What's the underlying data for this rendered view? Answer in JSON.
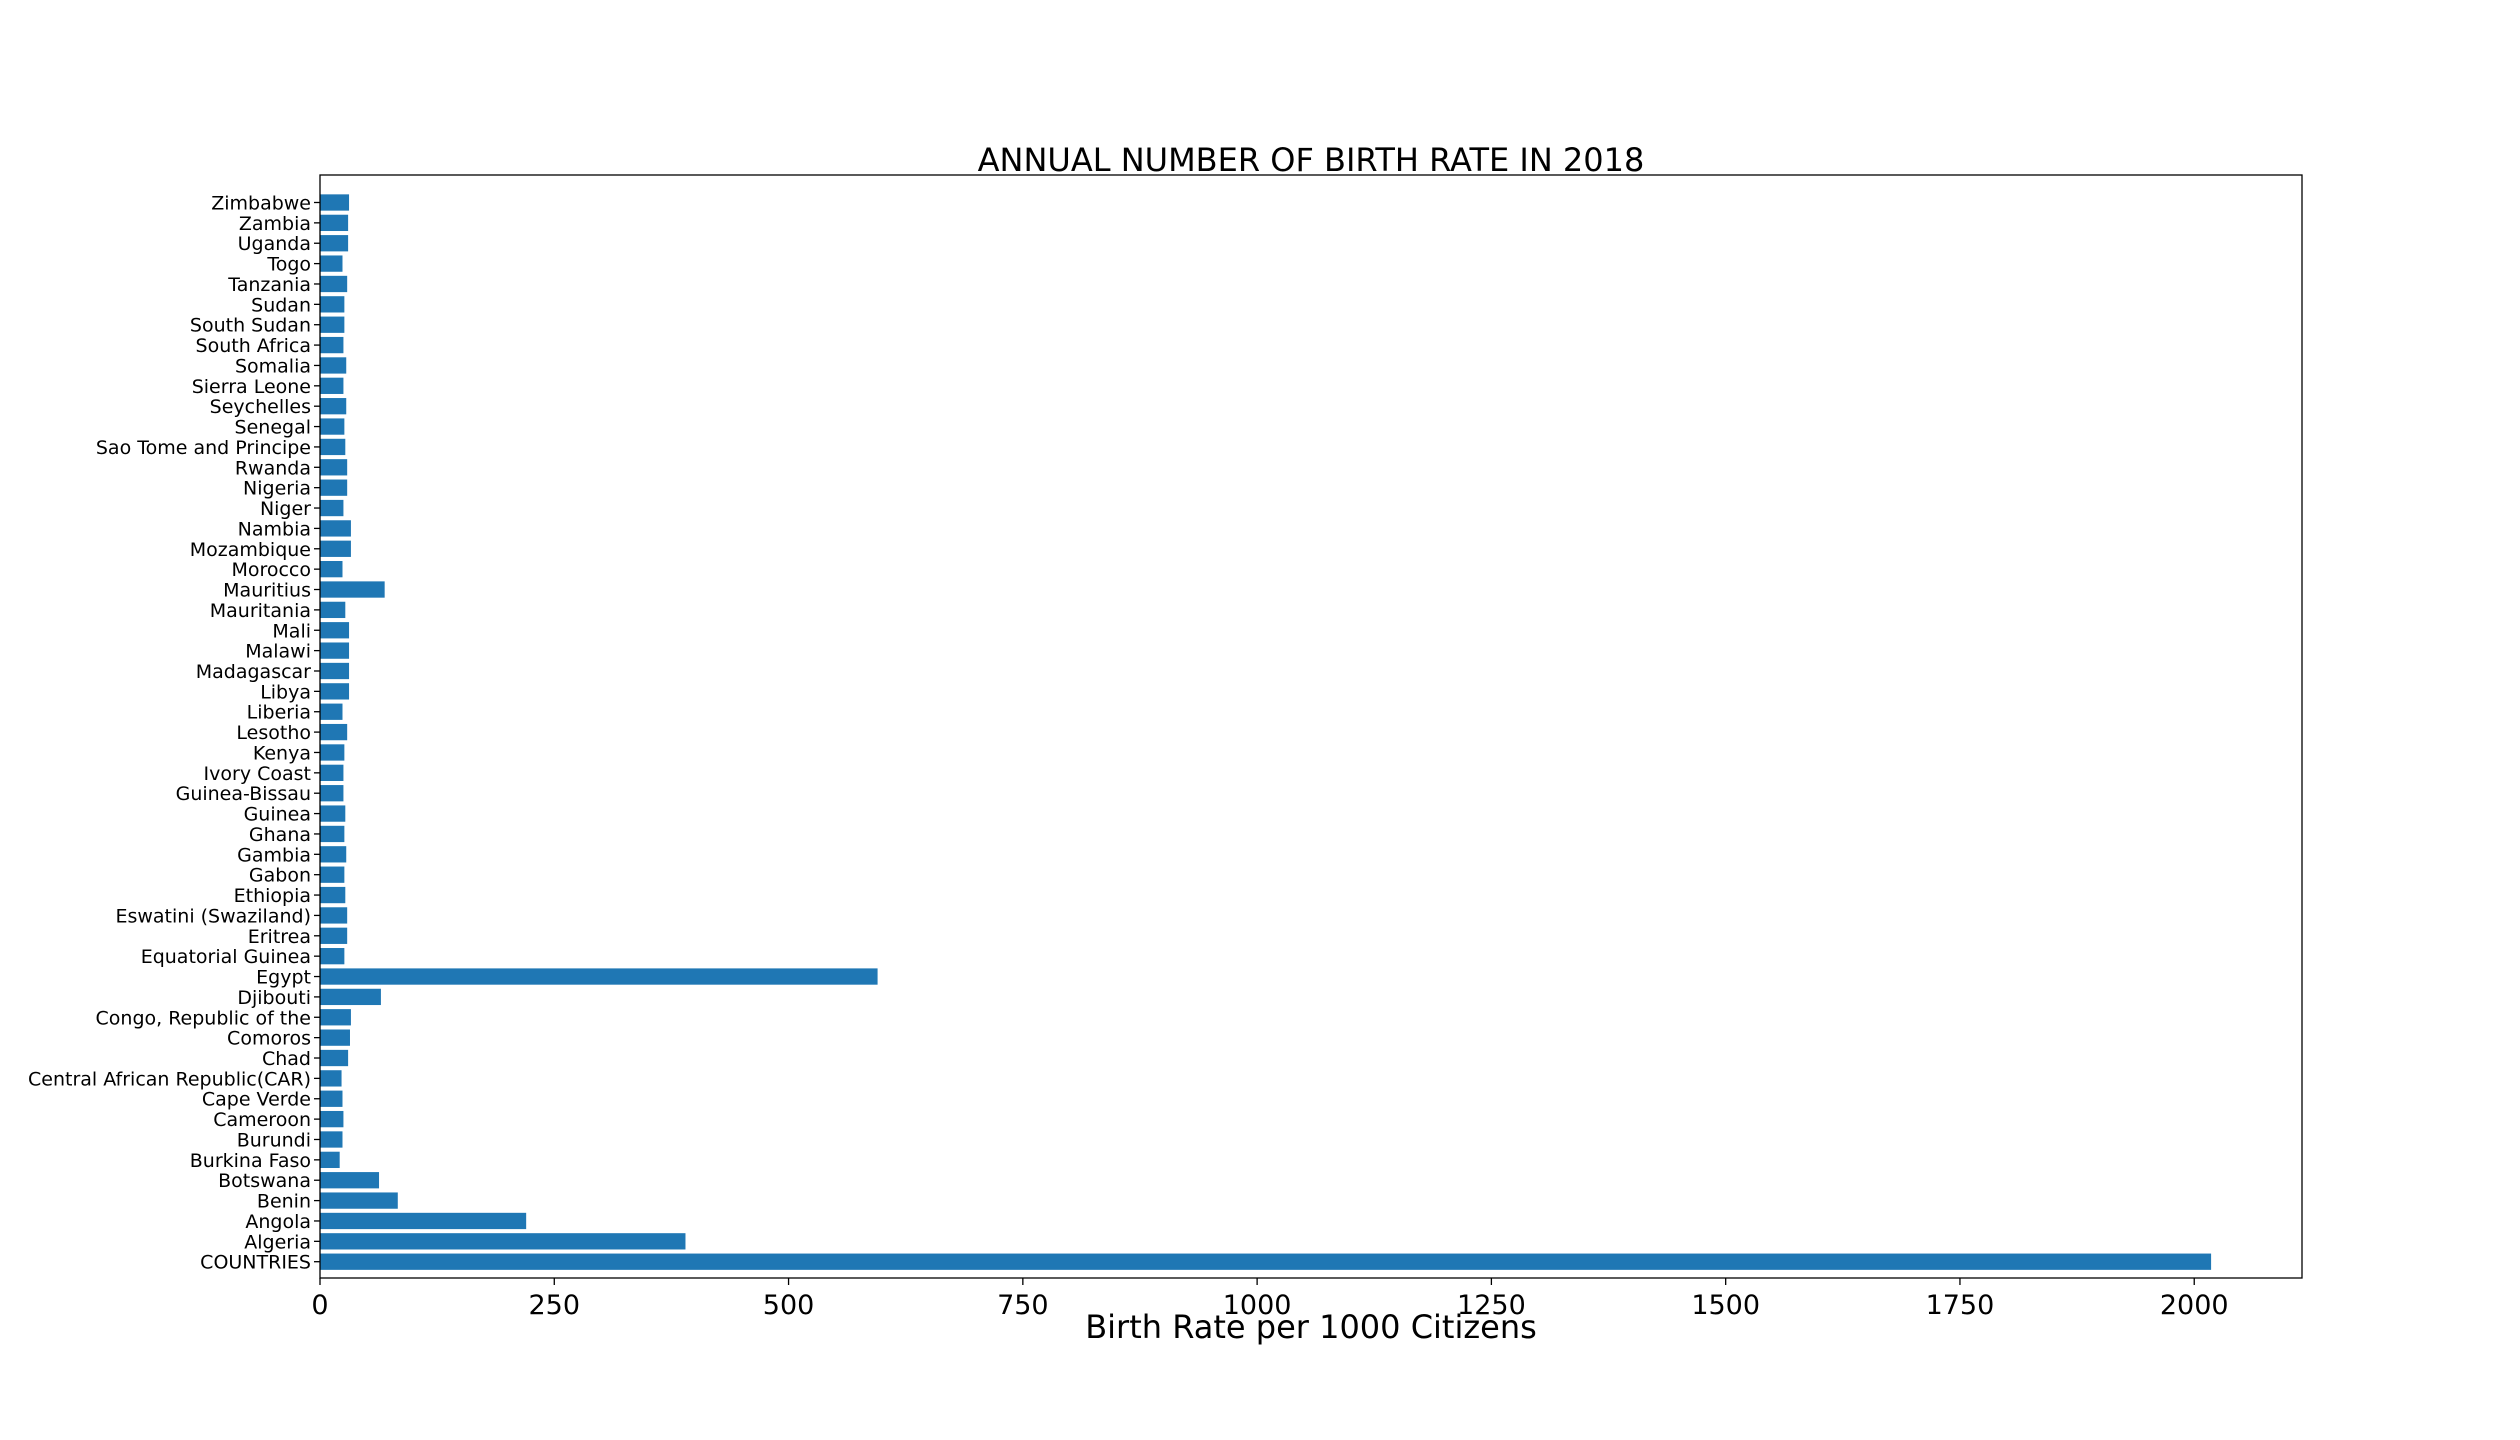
{
  "chart_data": {
    "type": "bar",
    "orientation": "horizontal",
    "title": "ANNUAL NUMBER OF BIRTH RATE IN 2018",
    "xlabel": "Birth Rate per 1000 Citizens",
    "ylabel": "",
    "xlim": [
      0,
      2115
    ],
    "xticks": [
      0,
      250,
      500,
      750,
      1000,
      1250,
      1500,
      1750,
      2000
    ],
    "grid": false,
    "bar_color": "#1f77b4",
    "categories": [
      "COUNTRIES",
      "Algeria",
      "Angola",
      "Benin",
      "Botswana",
      "Burkina Faso",
      "Burundi",
      "Cameroon",
      "Cape Verde",
      "Central African Republic(CAR)",
      "Chad",
      "Comoros",
      "Congo, Republic of the",
      "Djibouti",
      "Egypt",
      "Equatorial Guinea",
      "Eritrea",
      "Eswatini (Swaziland)",
      "Ethiopia",
      "Gabon",
      "Gambia",
      "Ghana",
      "Guinea",
      "Guinea-Bissau",
      "Ivory Coast",
      "Kenya",
      "Lesotho",
      "Liberia",
      "Libya",
      "Madagascar",
      "Malawi",
      "Mali",
      "Mauritania",
      "Mauritius",
      "Morocco",
      "Mozambique",
      "Nambia",
      "Niger",
      "Nigeria",
      "Rwanda",
      "Sao Tome and Principe",
      "Senegal",
      "Seychelles",
      "Sierra Leone",
      "Somalia",
      "South Africa",
      "South Sudan",
      "Sudan",
      "Tanzania",
      "Togo",
      "Uganda",
      "Zambia",
      "Zimbabwe"
    ],
    "values": [
      2018,
      390,
      220,
      83,
      63,
      21,
      24,
      25,
      24,
      23,
      30,
      32,
      33,
      65,
      595,
      26,
      29,
      29,
      27,
      26,
      28,
      26,
      27,
      25,
      25,
      26,
      29,
      24,
      31,
      31,
      31,
      31,
      27,
      69,
      24,
      33,
      33,
      25,
      29,
      29,
      27,
      26,
      28,
      25,
      28,
      25,
      26,
      26,
      29,
      24,
      30,
      30,
      31
    ]
  }
}
